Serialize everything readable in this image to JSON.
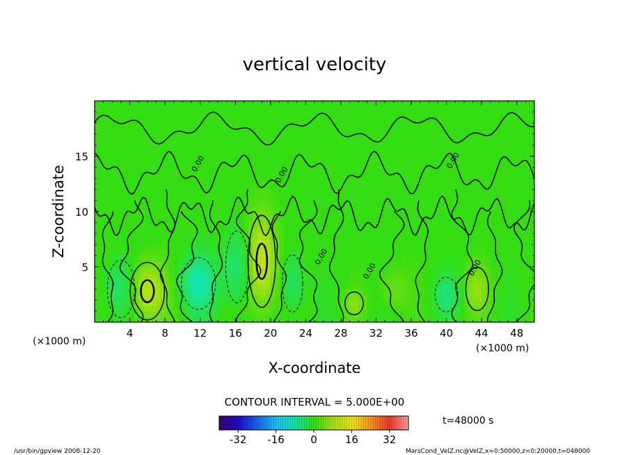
{
  "chart_data": {
    "type": "heatmap",
    "title": "vertical velocity",
    "xlabel": "X-coordinate",
    "ylabel": "Z-coordinate",
    "x_unit": "(×1000 m)",
    "y_unit": "(×1000 m)",
    "xlim": [
      0,
      50
    ],
    "ylim": [
      0,
      20
    ],
    "x_ticks": [
      4,
      8,
      12,
      16,
      20,
      24,
      28,
      32,
      36,
      40,
      44,
      48
    ],
    "y_ticks": [
      5,
      10,
      15
    ],
    "contour_interval_text": "CONTOUR INTERVAL = 5.000E+00",
    "contour_labels": [
      {
        "text": "0.00",
        "x": 12.0,
        "z": 14.2
      },
      {
        "text": "0.00",
        "x": 21.5,
        "z": 13.2
      },
      {
        "text": "0.00",
        "x": 26.0,
        "z": 5.8
      },
      {
        "text": "0.00",
        "x": 31.5,
        "z": 4.5
      },
      {
        "text": "0.00",
        "x": 41.0,
        "z": 14.5
      },
      {
        "text": "0.00",
        "x": 43.5,
        "z": 4.8
      }
    ],
    "colorbar": {
      "ticks": [
        -32,
        -16,
        0,
        16,
        32
      ],
      "range": [
        -40,
        40
      ]
    },
    "features": [
      {
        "x": 6.0,
        "z": 2.8,
        "amplitude": 10,
        "sx": 1.5,
        "sz": 2.0
      },
      {
        "x": 19.0,
        "z": 5.5,
        "amplitude": 11,
        "sx": 1.2,
        "sz": 3.2
      },
      {
        "x": 43.5,
        "z": 3.0,
        "amplitude": 6,
        "sx": 1.0,
        "sz": 1.5
      },
      {
        "x": 29.5,
        "z": 1.7,
        "amplitude": 5,
        "sx": 0.8,
        "sz": 0.8
      },
      {
        "x": 3.0,
        "z": 3.0,
        "amplitude": -6,
        "sx": 1.2,
        "sz": 2.0
      },
      {
        "x": 11.8,
        "z": 3.5,
        "amplitude": -8,
        "sx": 1.5,
        "sz": 1.8
      },
      {
        "x": 16.2,
        "z": 5.0,
        "amplitude": -6,
        "sx": 1.0,
        "sz": 2.5
      },
      {
        "x": 22.5,
        "z": 3.5,
        "amplitude": -5,
        "sx": 0.9,
        "sz": 2.0
      },
      {
        "x": 40.0,
        "z": 2.5,
        "amplitude": -5,
        "sx": 1.0,
        "sz": 1.2
      },
      {
        "x": 34.0,
        "z": 3.0,
        "amplitude": 4,
        "sx": 1.2,
        "sz": 1.5
      }
    ]
  },
  "time_label": "t=48000 s",
  "footer": {
    "left": "/usr/bin/gpview  2008-12-20",
    "right": "MarsCond_VelZ.nc@VelZ,x=0:50000,z=0:20000,t=048000"
  }
}
